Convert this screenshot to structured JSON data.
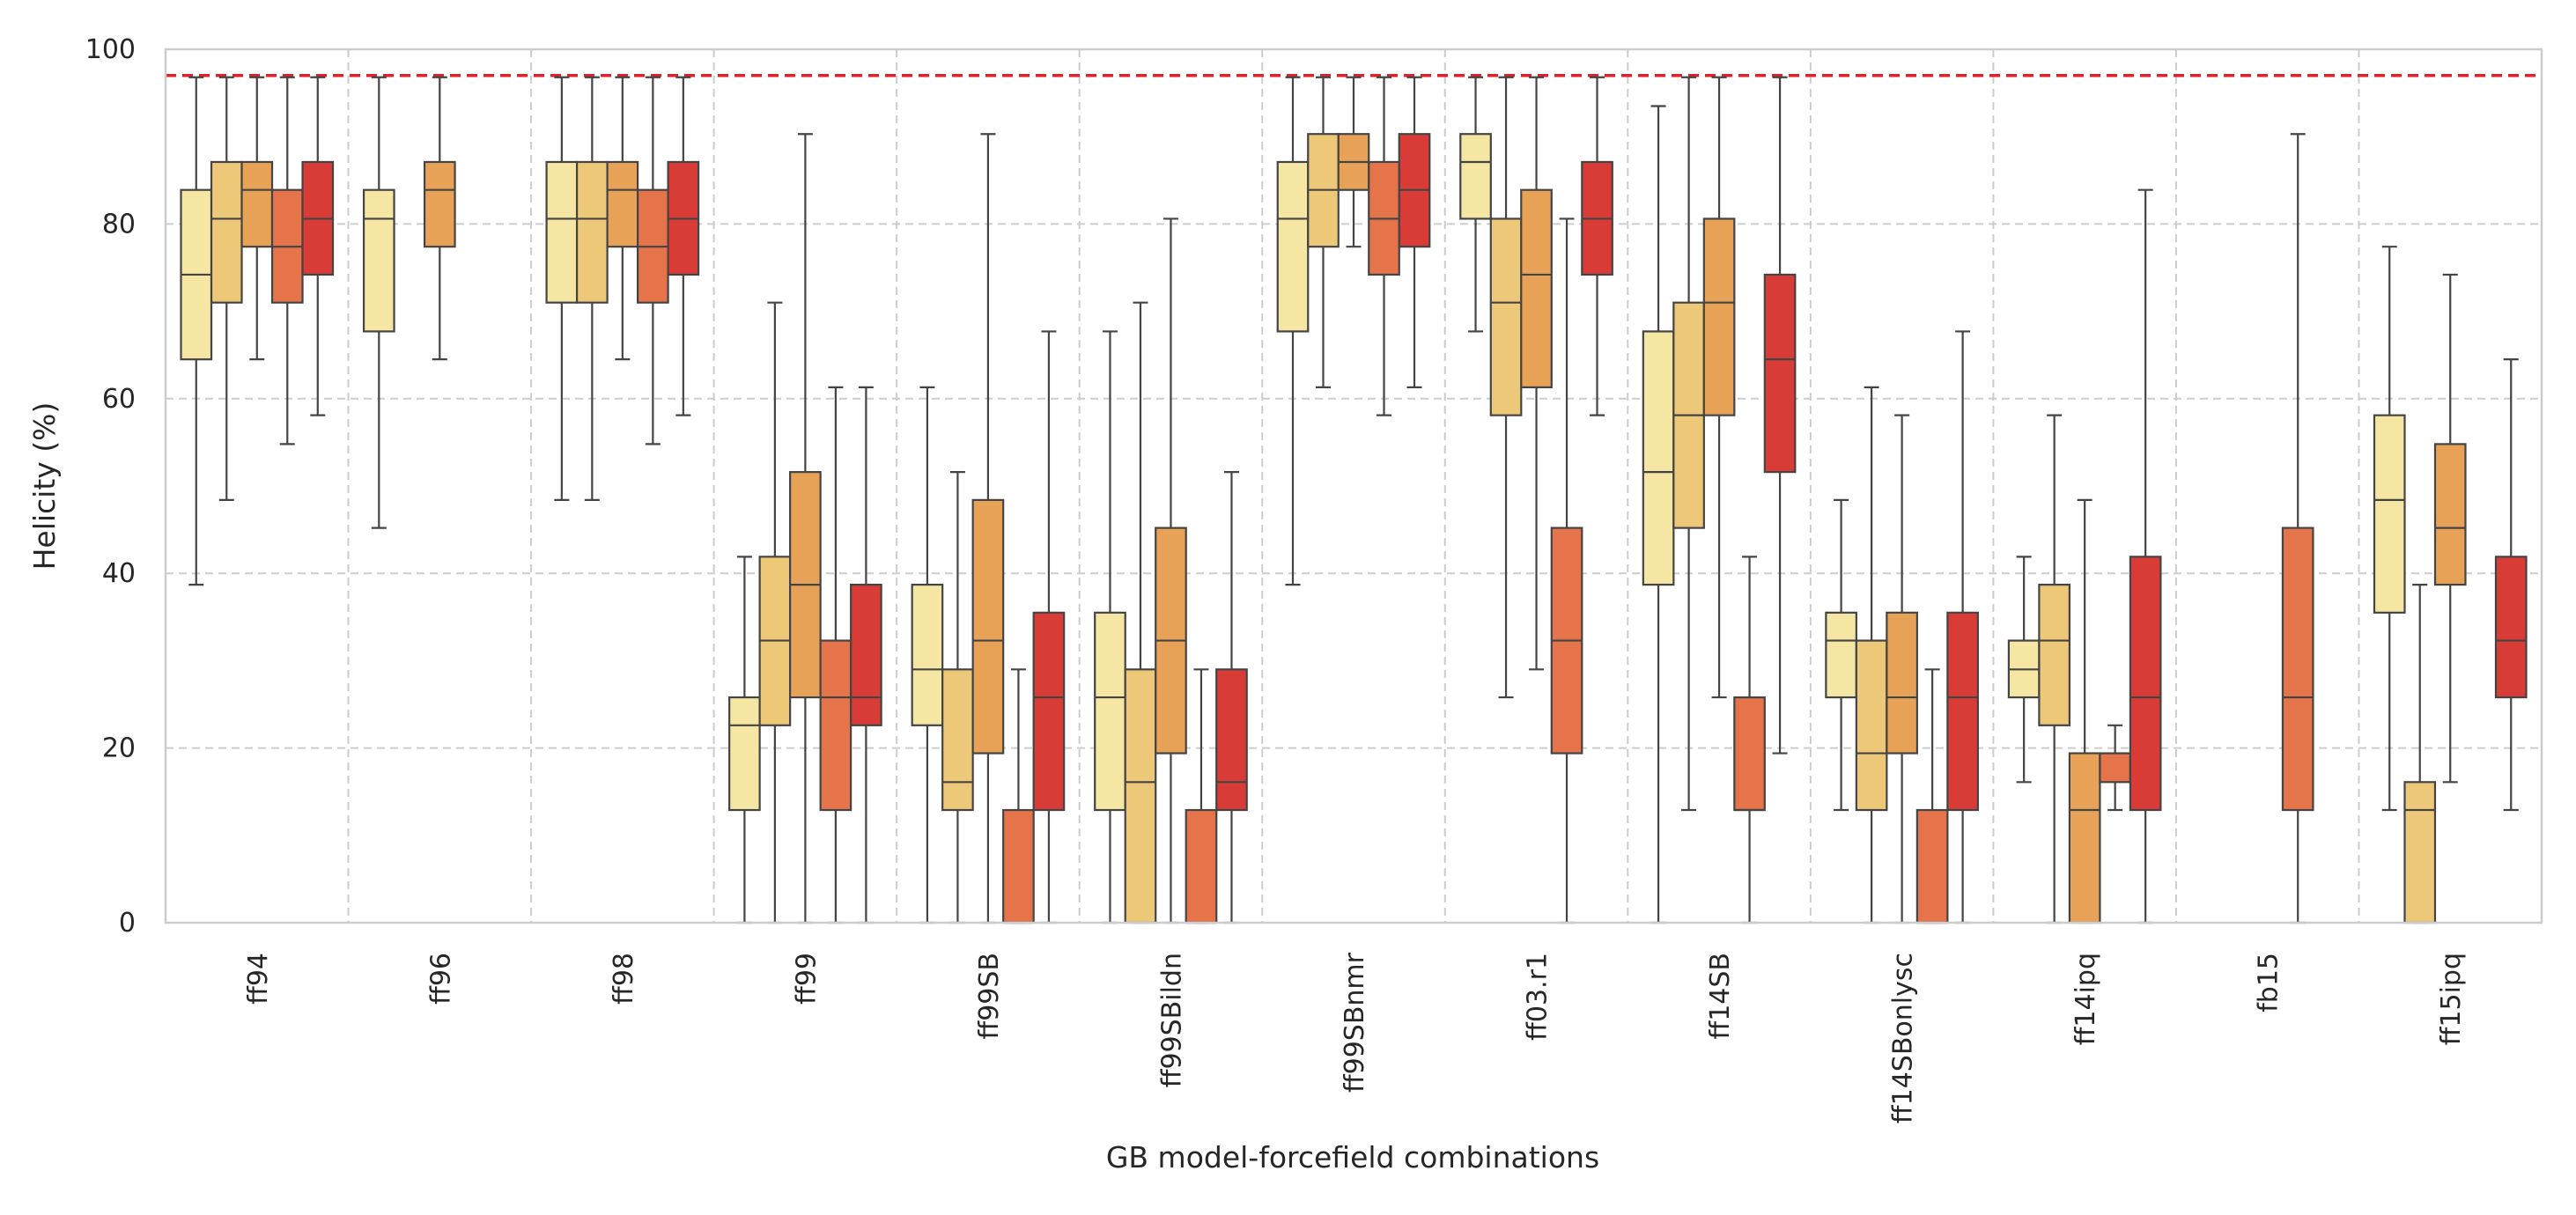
{
  "chart_data": {
    "type": "boxplot",
    "xlabel": "GB model-forcefield combinations",
    "ylabel": "Helicity (%)",
    "ylim": [
      0,
      100
    ],
    "yticks": [
      0,
      20,
      40,
      60,
      80,
      100
    ],
    "reference_line": {
      "y": 97,
      "style": "dashed",
      "color": "#e0202a"
    },
    "grid": true,
    "hue_palette": [
      "#f5e6a3",
      "#eec879",
      "#e8a257",
      "#e5744a",
      "#d93c37"
    ],
    "categories": [
      "ff94",
      "ff96",
      "ff98",
      "ff99",
      "ff99SB",
      "ff99SBildn",
      "ff99SBnmr",
      "ff03.r1",
      "ff14SB",
      "ff14SBonlysc",
      "ff14ipq",
      "fb15",
      "ff15ipq"
    ],
    "groups": [
      {
        "category": "ff94",
        "boxes": [
          {
            "hue": 0,
            "whislo": 38.7,
            "q1": 64.5,
            "med": 74.2,
            "q3": 83.9,
            "whishi": 96.8
          },
          {
            "hue": 1,
            "whislo": 48.4,
            "q1": 71.0,
            "med": 80.6,
            "q3": 87.1,
            "whishi": 96.8
          },
          {
            "hue": 2,
            "whislo": 64.5,
            "q1": 77.4,
            "med": 83.9,
            "q3": 87.1,
            "whishi": 96.8
          },
          {
            "hue": 3,
            "whislo": 54.8,
            "q1": 71.0,
            "med": 77.4,
            "q3": 83.9,
            "whishi": 96.8
          },
          {
            "hue": 4,
            "whislo": 58.1,
            "q1": 74.2,
            "med": 80.6,
            "q3": 87.1,
            "whishi": 96.8
          }
        ]
      },
      {
        "category": "ff96",
        "boxes": [
          {
            "hue": 0,
            "whislo": 45.2,
            "q1": 67.7,
            "med": 80.6,
            "q3": 83.9,
            "whishi": 96.8
          },
          {
            "hue": 2,
            "whislo": 64.5,
            "q1": 77.4,
            "med": 83.9,
            "q3": 87.1,
            "whishi": 96.8
          }
        ]
      },
      {
        "category": "ff98",
        "boxes": [
          {
            "hue": 0,
            "whislo": 48.4,
            "q1": 71.0,
            "med": 80.6,
            "q3": 87.1,
            "whishi": 96.8
          },
          {
            "hue": 1,
            "whislo": 48.4,
            "q1": 71.0,
            "med": 80.6,
            "q3": 87.1,
            "whishi": 96.8
          },
          {
            "hue": 2,
            "whislo": 64.5,
            "q1": 77.4,
            "med": 83.9,
            "q3": 87.1,
            "whishi": 96.8
          },
          {
            "hue": 3,
            "whislo": 54.8,
            "q1": 71.0,
            "med": 77.4,
            "q3": 83.9,
            "whishi": 96.8
          },
          {
            "hue": 4,
            "whislo": 58.1,
            "q1": 74.2,
            "med": 80.6,
            "q3": 87.1,
            "whishi": 96.8
          }
        ]
      },
      {
        "category": "ff99",
        "boxes": [
          {
            "hue": 0,
            "whislo": 0,
            "q1": 12.9,
            "med": 22.6,
            "q3": 25.8,
            "whishi": 41.9
          },
          {
            "hue": 1,
            "whislo": 0,
            "q1": 22.6,
            "med": 32.3,
            "q3": 41.9,
            "whishi": 71.0
          },
          {
            "hue": 2,
            "whislo": 0,
            "q1": 25.8,
            "med": 38.7,
            "q3": 51.6,
            "whishi": 90.3
          },
          {
            "hue": 3,
            "whislo": 0,
            "q1": 12.9,
            "med": 25.8,
            "q3": 32.3,
            "whishi": 61.3
          },
          {
            "hue": 4,
            "whislo": 0,
            "q1": 22.6,
            "med": 25.8,
            "q3": 38.7,
            "whishi": 61.3
          }
        ]
      },
      {
        "category": "ff99SB",
        "boxes": [
          {
            "hue": 0,
            "whislo": 0,
            "q1": 22.6,
            "med": 29.0,
            "q3": 38.7,
            "whishi": 61.3
          },
          {
            "hue": 1,
            "whislo": 0,
            "q1": 12.9,
            "med": 16.1,
            "q3": 29.0,
            "whishi": 51.6
          },
          {
            "hue": 2,
            "whislo": 0,
            "q1": 19.4,
            "med": 32.3,
            "q3": 48.4,
            "whishi": 90.3
          },
          {
            "hue": 3,
            "whislo": 0,
            "q1": 0,
            "med": 0,
            "q3": 12.9,
            "whishi": 29.0
          },
          {
            "hue": 4,
            "whislo": 0,
            "q1": 12.9,
            "med": 25.8,
            "q3": 35.5,
            "whishi": 67.7
          }
        ]
      },
      {
        "category": "ff99SBildn",
        "boxes": [
          {
            "hue": 0,
            "whislo": 0,
            "q1": 12.9,
            "med": 25.8,
            "q3": 35.5,
            "whishi": 67.7
          },
          {
            "hue": 1,
            "whislo": 0,
            "q1": 0,
            "med": 16.1,
            "q3": 29.0,
            "whishi": 71.0
          },
          {
            "hue": 2,
            "whislo": 0,
            "q1": 19.4,
            "med": 32.3,
            "q3": 45.2,
            "whishi": 80.6
          },
          {
            "hue": 3,
            "whislo": 0,
            "q1": 0,
            "med": 0,
            "q3": 12.9,
            "whishi": 29.0
          },
          {
            "hue": 4,
            "whislo": 0,
            "q1": 12.9,
            "med": 16.1,
            "q3": 29.0,
            "whishi": 51.6
          }
        ]
      },
      {
        "category": "ff99SBnmr",
        "boxes": [
          {
            "hue": 0,
            "whislo": 38.7,
            "q1": 67.7,
            "med": 80.6,
            "q3": 87.1,
            "whishi": 96.8
          },
          {
            "hue": 1,
            "whislo": 61.3,
            "q1": 77.4,
            "med": 83.9,
            "q3": 90.3,
            "whishi": 96.8
          },
          {
            "hue": 2,
            "whislo": 77.4,
            "q1": 83.9,
            "med": 87.1,
            "q3": 90.3,
            "whishi": 96.8
          },
          {
            "hue": 3,
            "whislo": 58.1,
            "q1": 74.2,
            "med": 80.6,
            "q3": 87.1,
            "whishi": 96.8
          },
          {
            "hue": 4,
            "whislo": 61.3,
            "q1": 77.4,
            "med": 83.9,
            "q3": 90.3,
            "whishi": 96.8
          }
        ]
      },
      {
        "category": "ff03.r1",
        "boxes": [
          {
            "hue": 0,
            "whislo": 67.7,
            "q1": 80.6,
            "med": 87.1,
            "q3": 90.3,
            "whishi": 96.8
          },
          {
            "hue": 1,
            "whislo": 25.8,
            "q1": 58.1,
            "med": 71.0,
            "q3": 80.6,
            "whishi": 96.8
          },
          {
            "hue": 2,
            "whislo": 29.0,
            "q1": 61.3,
            "med": 74.2,
            "q3": 83.9,
            "whishi": 96.8
          },
          {
            "hue": 3,
            "whislo": 0,
            "q1": 19.4,
            "med": 32.3,
            "q3": 45.2,
            "whishi": 80.6
          },
          {
            "hue": 4,
            "whislo": 58.1,
            "q1": 74.2,
            "med": 80.6,
            "q3": 87.1,
            "whishi": 96.8
          }
        ]
      },
      {
        "category": "ff14SB",
        "boxes": [
          {
            "hue": 0,
            "whislo": 0,
            "q1": 38.7,
            "med": 51.6,
            "q3": 67.7,
            "whishi": 93.5
          },
          {
            "hue": 1,
            "whislo": 12.9,
            "q1": 45.2,
            "med": 58.1,
            "q3": 71.0,
            "whishi": 96.8
          },
          {
            "hue": 2,
            "whislo": 25.8,
            "q1": 58.1,
            "med": 71.0,
            "q3": 80.6,
            "whishi": 96.8
          },
          {
            "hue": 3,
            "whislo": 0,
            "q1": 12.9,
            "med": 12.9,
            "q3": 25.8,
            "whishi": 41.9
          },
          {
            "hue": 4,
            "whislo": 19.4,
            "q1": 51.6,
            "med": 64.5,
            "q3": 74.2,
            "whishi": 96.8
          }
        ]
      },
      {
        "category": "ff14SBonlysc",
        "boxes": [
          {
            "hue": 0,
            "whislo": 12.9,
            "q1": 25.8,
            "med": 32.3,
            "q3": 35.5,
            "whishi": 48.4
          },
          {
            "hue": 1,
            "whislo": 0,
            "q1": 12.9,
            "med": 19.4,
            "q3": 32.3,
            "whishi": 61.3
          },
          {
            "hue": 2,
            "whislo": 0,
            "q1": 19.4,
            "med": 25.8,
            "q3": 35.5,
            "whishi": 58.1
          },
          {
            "hue": 3,
            "whislo": 0,
            "q1": 0,
            "med": 0,
            "q3": 12.9,
            "whishi": 29.0
          },
          {
            "hue": 4,
            "whislo": 0,
            "q1": 12.9,
            "med": 25.8,
            "q3": 35.5,
            "whishi": 67.7
          }
        ]
      },
      {
        "category": "ff14ipq",
        "boxes": [
          {
            "hue": 0,
            "whislo": 16.1,
            "q1": 25.8,
            "med": 29.0,
            "q3": 32.3,
            "whishi": 41.9
          },
          {
            "hue": 1,
            "whislo": 0,
            "q1": 22.6,
            "med": 32.3,
            "q3": 38.7,
            "whishi": 58.1
          },
          {
            "hue": 2,
            "whislo": 0,
            "q1": 0,
            "med": 12.9,
            "q3": 19.4,
            "whishi": 48.4
          },
          {
            "hue": 3,
            "whislo": 12.9,
            "q1": 16.1,
            "med": 19.4,
            "q3": 19.4,
            "whishi": 22.6
          },
          {
            "hue": 4,
            "whislo": 0,
            "q1": 12.9,
            "med": 25.8,
            "q3": 41.9,
            "whishi": 83.9
          }
        ]
      },
      {
        "category": "fb15",
        "boxes": [
          {
            "hue": 3,
            "whislo": 0,
            "q1": 12.9,
            "med": 25.8,
            "q3": 45.2,
            "whishi": 90.3
          }
        ]
      },
      {
        "category": "ff15ipq",
        "boxes": [
          {
            "hue": 0,
            "whislo": 12.9,
            "q1": 35.5,
            "med": 48.4,
            "q3": 58.1,
            "whishi": 77.4
          },
          {
            "hue": 1,
            "whislo": 0,
            "q1": 0,
            "med": 12.9,
            "q3": 16.1,
            "whishi": 38.7
          },
          {
            "hue": 2,
            "whislo": 16.1,
            "q1": 38.7,
            "med": 45.2,
            "q3": 54.8,
            "whishi": 74.2
          },
          {
            "hue": 4,
            "whislo": 12.9,
            "q1": 25.8,
            "med": 32.3,
            "q3": 41.9,
            "whishi": 64.5
          }
        ]
      }
    ]
  }
}
